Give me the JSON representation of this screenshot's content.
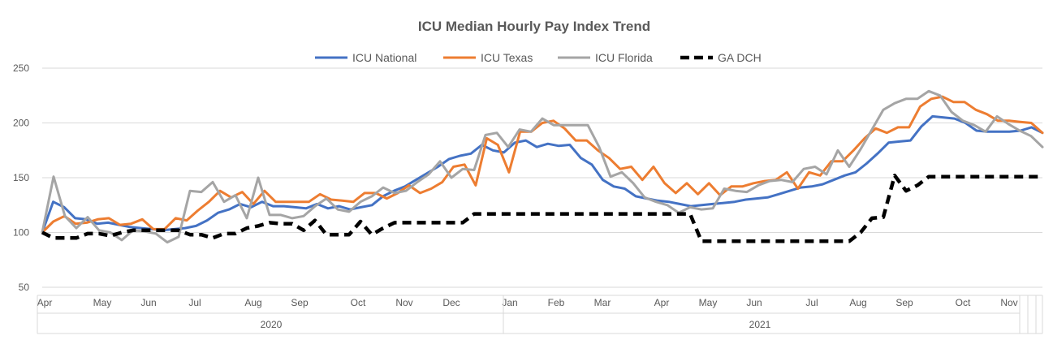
{
  "chart_data": {
    "type": "line",
    "title": "ICU Median Hourly Pay Index Trend",
    "xlabel": "",
    "ylabel": "",
    "ylim": [
      50,
      250
    ],
    "yticks": [
      50,
      100,
      150,
      200,
      250
    ],
    "grid": true,
    "legend_position": "top-center",
    "x_ticks": [
      "Apr",
      "May",
      "Jun",
      "Jul",
      "Aug",
      "Sep",
      "Oct",
      "Nov",
      "Dec",
      "Jan",
      "Feb",
      "Mar",
      "Apr",
      "May",
      "Jun",
      "Jul",
      "Aug",
      "Sep",
      "Oct",
      "Nov"
    ],
    "years": [
      "2020",
      "2021"
    ],
    "series": [
      {
        "name": "ICU National",
        "color": "#4472C4",
        "style": "solid",
        "values": [
          100,
          128,
          123,
          113,
          112,
          108,
          109,
          107,
          105,
          104,
          103,
          102,
          103,
          104,
          106,
          111,
          118,
          121,
          126,
          123,
          128,
          124,
          124,
          123,
          122,
          126,
          122,
          124,
          121,
          123,
          125,
          133,
          138,
          142,
          148,
          154,
          160,
          167,
          170,
          172,
          180,
          175,
          173,
          182,
          184,
          178,
          181,
          179,
          180,
          168,
          162,
          148,
          142,
          140,
          133,
          131,
          129,
          128,
          126,
          124,
          125,
          126,
          127,
          128,
          130,
          131,
          132,
          135,
          138,
          141,
          142,
          144,
          148,
          152,
          155,
          163,
          172,
          182,
          183,
          184,
          197,
          206,
          205,
          204,
          200,
          193,
          192,
          192,
          192,
          193,
          196,
          191
        ]
      },
      {
        "name": "ICU Texas",
        "color": "#ED7D31",
        "style": "solid",
        "values": [
          100,
          110,
          115,
          108,
          109,
          112,
          113,
          107,
          108,
          112,
          103,
          103,
          113,
          111,
          120,
          128,
          138,
          132,
          137,
          126,
          138,
          128,
          128,
          128,
          128,
          135,
          130,
          129,
          128,
          136,
          136,
          131,
          136,
          143,
          136,
          140,
          146,
          160,
          162,
          143,
          186,
          180,
          155,
          192,
          192,
          200,
          202,
          195,
          184,
          184,
          175,
          168,
          158,
          160,
          148,
          160,
          145,
          136,
          145,
          135,
          145,
          134,
          142,
          142,
          145,
          147,
          148,
          155,
          140,
          155,
          152,
          165,
          165,
          175,
          186,
          195,
          191,
          196,
          196,
          215,
          222,
          224,
          219,
          219,
          212,
          208,
          202,
          202,
          201,
          200,
          191
        ]
      },
      {
        "name": "ICU Florida",
        "color": "#A5A5A5",
        "style": "solid",
        "values": [
          100,
          151,
          115,
          104,
          114,
          102,
          100,
          93,
          102,
          101,
          99,
          91,
          96,
          138,
          137,
          146,
          128,
          134,
          113,
          150,
          116,
          116,
          113,
          115,
          124,
          131,
          121,
          119,
          128,
          133,
          141,
          136,
          138,
          146,
          153,
          165,
          150,
          158,
          157,
          189,
          191,
          178,
          194,
          192,
          204,
          198,
          198,
          198,
          198,
          178,
          151,
          155,
          145,
          132,
          128,
          125,
          118,
          123,
          121,
          122,
          140,
          138,
          137,
          143,
          147,
          148,
          146,
          158,
          160,
          153,
          175,
          160,
          176,
          194,
          212,
          218,
          222,
          222,
          229,
          225,
          210,
          202,
          198,
          192,
          206,
          199,
          193,
          188,
          178
        ]
      },
      {
        "name": "GA DCH",
        "color": "#000000",
        "style": "dashed",
        "values": [
          100,
          95,
          95,
          95,
          99,
          99,
          97,
          100,
          102,
          102,
          102,
          102,
          102,
          98,
          98,
          95,
          99,
          99,
          104,
          106,
          109,
          108,
          108,
          102,
          111,
          98,
          98,
          98,
          110,
          98,
          104,
          109,
          109,
          109,
          109,
          109,
          109,
          109,
          117,
          117,
          117,
          117,
          117,
          117,
          117,
          117,
          117,
          117,
          117,
          117,
          117,
          117,
          117,
          117,
          117,
          117,
          117,
          117,
          92,
          92,
          92,
          92,
          92,
          92,
          92,
          92,
          92,
          92,
          92,
          92,
          92,
          92,
          100,
          113,
          114,
          152,
          138,
          143,
          151,
          151,
          151,
          151,
          151,
          151,
          151,
          151,
          151,
          151,
          151
        ]
      }
    ]
  }
}
